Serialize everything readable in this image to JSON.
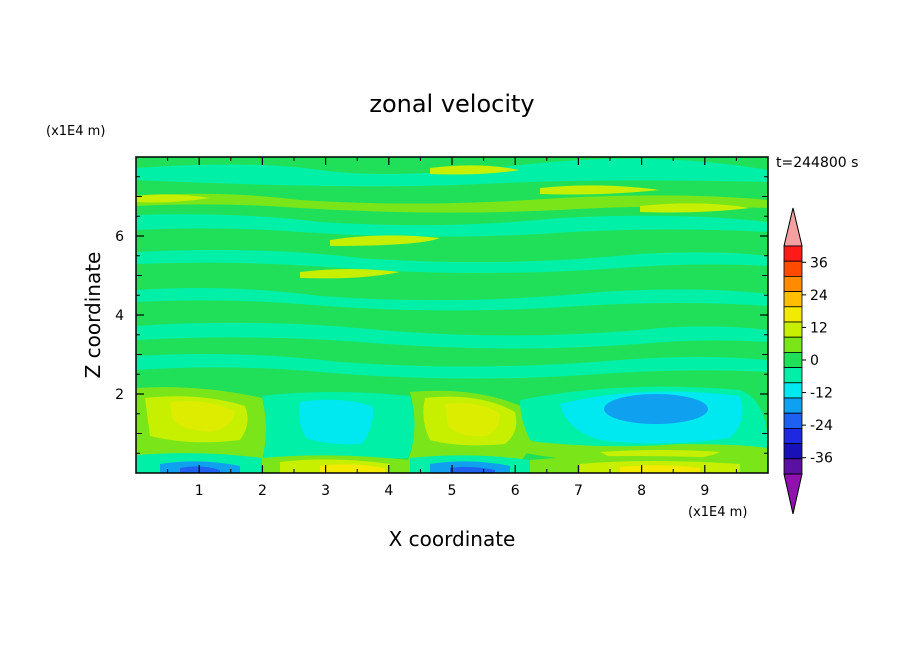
{
  "chart_data": {
    "type": "heatmap",
    "title": "zonal velocity",
    "xlabel": "X coordinate",
    "ylabel": "Z coordinate",
    "x_unit": "(x1E4 m)",
    "z_unit": "(x1E4 m)",
    "time_label": "t=244800 s",
    "xlim": [
      0,
      10
    ],
    "ylim": [
      0,
      8
    ],
    "x_ticks": [
      1,
      2,
      3,
      4,
      5,
      6,
      7,
      8,
      9
    ],
    "y_ticks": [
      2,
      4,
      6
    ],
    "colorbar": {
      "levels": [
        -42,
        -36,
        -30,
        -24,
        -18,
        -12,
        -6,
        0,
        6,
        12,
        18,
        24,
        30,
        36,
        42
      ],
      "tick_labels": [
        "36",
        "24",
        "12",
        "0",
        "-12",
        "-24",
        "-36"
      ],
      "tick_values": [
        36,
        24,
        12,
        0,
        -12,
        -24,
        -36
      ],
      "colors": [
        "#f5a0a0",
        "#ff1a1a",
        "#ff4a00",
        "#ff8c00",
        "#ffbf00",
        "#f2ea00",
        "#c6f000",
        "#7ae61a",
        "#20e05a",
        "#00f0a8",
        "#00e8f0",
        "#10a0f0",
        "#1e60f0",
        "#1e28e0",
        "#1a10b8",
        "#5a10a0",
        "#9010b0"
      ]
    },
    "features": [
      {
        "x": 1.1,
        "z": 1.2,
        "value": 10
      },
      {
        "x": 5.1,
        "z": 1.2,
        "value": 10
      },
      {
        "x": 8.2,
        "z": 1.6,
        "value": -15
      },
      {
        "x": 3.2,
        "z": 1.2,
        "value": -9
      },
      {
        "x": 1.0,
        "z": 0.1,
        "value": -18
      },
      {
        "x": 5.3,
        "z": 0.1,
        "value": -18
      },
      {
        "x": 3.7,
        "z": 0.15,
        "value": 15
      },
      {
        "x": 8.5,
        "z": 0.15,
        "value": 15
      }
    ],
    "grid": false,
    "legend": "colorbar-right"
  }
}
